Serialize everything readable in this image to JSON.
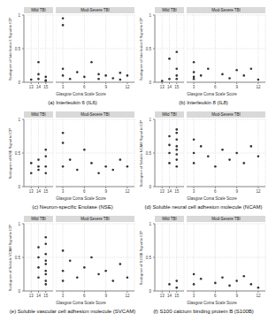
{
  "chart_data": [
    {
      "type": "scatter",
      "title": "(a) Interleukin 6 (IL6)",
      "x_label": "Glasgow Coma Scale Score",
      "y_label": "Scalogram of Interleukin 6 Signal to ICP",
      "ylim": [
        0,
        1
      ],
      "yticks": [
        0,
        0.5,
        1
      ],
      "grid": true,
      "color": "#333333",
      "panels": [
        {
          "title": "Mild TBI",
          "xlim": [
            12,
            16
          ],
          "xticks": [
            13,
            14,
            15
          ],
          "x": [
            14,
            14,
            15,
            15,
            15,
            13,
            14
          ],
          "values": [
            0.12,
            0.05,
            0.03,
            0.08,
            0.02,
            0.04,
            0.3
          ]
        },
        {
          "title": "Mod-Severe TBI",
          "xlim": [
            2,
            13
          ],
          "xticks": [
            3,
            6,
            9,
            12
          ],
          "x": [
            3,
            3,
            3,
            3,
            4,
            5,
            6,
            7,
            8,
            8,
            9,
            10,
            11,
            11,
            12
          ],
          "values": [
            0.95,
            0.85,
            0.2,
            0.1,
            0.05,
            0.15,
            0.08,
            0.3,
            0.12,
            0.05,
            0.1,
            0.06,
            0.14,
            0.04,
            0.1
          ]
        }
      ]
    },
    {
      "type": "scatter",
      "title": "(b) Interleukin 8 (IL8)",
      "x_label": "Glasgow Coma Scale Score",
      "y_label": "Scalogram of Interleukin 8 Signal to ICP",
      "ylim": [
        0,
        1
      ],
      "yticks": [
        0,
        0.5,
        1
      ],
      "grid": true,
      "color": "#333333",
      "panels": [
        {
          "title": "Mild TBI",
          "xlim": [
            12,
            16
          ],
          "xticks": [
            13,
            14,
            15
          ],
          "x": [
            13,
            14,
            14,
            15,
            15,
            15,
            15
          ],
          "values": [
            0.02,
            0.05,
            0.35,
            0.1,
            0.2,
            0.45,
            0.05
          ]
        },
        {
          "title": "Mod-Severe TBI",
          "xlim": [
            2,
            13
          ],
          "xticks": [
            3,
            6,
            9,
            12
          ],
          "x": [
            3,
            3,
            3,
            3,
            4,
            5,
            7,
            8,
            9,
            10,
            11,
            12
          ],
          "values": [
            0.15,
            0.08,
            0.3,
            0.05,
            0.1,
            0.2,
            0.12,
            0.06,
            0.18,
            0.1,
            0.2,
            0.04
          ]
        }
      ]
    },
    {
      "type": "scatter",
      "title": "(c) Neuron-specific Enolase (NSE)",
      "x_label": "Glasgow Coma Scale Score",
      "y_label": "Scalogram of NSE Signal to ICP",
      "ylim": [
        0,
        1
      ],
      "yticks": [
        0,
        0.5,
        1
      ],
      "grid": true,
      "color": "#333333",
      "panels": [
        {
          "title": "Mild TBI",
          "xlim": [
            12,
            16
          ],
          "xticks": [
            13,
            14,
            15
          ],
          "x": [
            13,
            13,
            14,
            14,
            14,
            15,
            15,
            15,
            15
          ],
          "values": [
            0.2,
            0.35,
            0.25,
            0.4,
            0.3,
            0.45,
            0.2,
            0.55,
            0.3
          ]
        },
        {
          "title": "Mod-Severe TBI",
          "xlim": [
            2,
            13
          ],
          "xticks": [
            3,
            6,
            9,
            12
          ],
          "x": [
            3,
            3,
            3,
            4,
            5,
            6,
            7,
            8,
            9,
            10,
            11,
            12
          ],
          "values": [
            0.8,
            0.65,
            0.3,
            0.4,
            0.25,
            0.55,
            0.35,
            0.2,
            0.3,
            0.25,
            0.4,
            0.3
          ]
        }
      ]
    },
    {
      "type": "scatter",
      "title": "(d) Soluble neural cell adhesion molecule (NCAM)",
      "x_label": "Glasgow Coma Scale Score",
      "y_label": "Scalogram of Soluble NCAM Signal to ICP",
      "ylim": [
        0,
        1
      ],
      "yticks": [
        0,
        0.5,
        1
      ],
      "grid": true,
      "color": "#333333",
      "panels": [
        {
          "title": "Mild TBI",
          "xlim": [
            12,
            16
          ],
          "xticks": [
            13,
            14,
            15
          ],
          "x": [
            14,
            14,
            14,
            14,
            15,
            15,
            15,
            15,
            15,
            15,
            15,
            15
          ],
          "values": [
            0.35,
            0.5,
            0.62,
            0.75,
            0.3,
            0.4,
            0.48,
            0.55,
            0.6,
            0.7,
            0.8,
            0.85
          ]
        },
        {
          "title": "Mod-Severe TBI",
          "xlim": [
            2,
            13
          ],
          "xticks": [
            3,
            6,
            9,
            12
          ],
          "x": [
            3,
            3,
            3,
            4,
            5,
            6,
            7,
            8,
            9,
            10,
            11,
            12
          ],
          "values": [
            0.7,
            0.5,
            0.35,
            0.6,
            0.45,
            0.3,
            0.55,
            0.4,
            0.5,
            0.35,
            0.6,
            0.45
          ]
        }
      ]
    },
    {
      "type": "scatter",
      "title": "(e) Soluble vascular cell adhesion molecule (SVCAM)",
      "x_label": "Glasgow Coma Scale Score",
      "y_label": "Scalogram of Soluble VCAM Signal to ICP",
      "ylim": [
        0,
        1
      ],
      "yticks": [
        0,
        0.5,
        1
      ],
      "grid": true,
      "color": "#333333",
      "panels": [
        {
          "title": "Mild TBI",
          "xlim": [
            12,
            16
          ],
          "xticks": [
            13,
            14,
            15
          ],
          "x": [
            14,
            14,
            14,
            14,
            15,
            15,
            15,
            15,
            15,
            15,
            15,
            15,
            15
          ],
          "values": [
            0.2,
            0.35,
            0.5,
            0.65,
            0.1,
            0.25,
            0.4,
            0.55,
            0.7,
            0.8,
            0.3,
            0.15,
            0.45
          ]
        },
        {
          "title": "Mod-Severe TBI",
          "xlim": [
            2,
            13
          ],
          "xticks": [
            3,
            6,
            9,
            12
          ],
          "x": [
            3,
            3,
            3,
            4,
            5,
            6,
            7,
            8,
            9,
            10,
            11,
            12
          ],
          "values": [
            0.6,
            0.3,
            0.15,
            0.45,
            0.2,
            0.35,
            0.5,
            0.25,
            0.3,
            0.15,
            0.4,
            0.2
          ]
        }
      ]
    },
    {
      "type": "scatter",
      "title": "(f) S100 calcium binding protein B (S100B)",
      "x_label": "Glasgow Coma Scale Score",
      "y_label": "Scalogram of S100B Signal to ICP",
      "ylim": [
        0,
        1
      ],
      "yticks": [
        0,
        0.5,
        1
      ],
      "grid": true,
      "color": "#333333",
      "panels": [
        {
          "title": "Mild TBI",
          "xlim": [
            12,
            16
          ],
          "xticks": [
            13,
            14,
            15
          ],
          "x": [
            14,
            15,
            15
          ],
          "values": [
            0.1,
            0.05,
            0.15
          ]
        },
        {
          "title": "Mod-Severe TBI",
          "xlim": [
            2,
            13
          ],
          "xticks": [
            3,
            6,
            9,
            12
          ],
          "x": [
            3,
            3,
            4,
            6,
            7,
            8,
            9,
            10,
            11,
            12
          ],
          "values": [
            0.25,
            0.1,
            0.18,
            0.12,
            0.2,
            0.08,
            0.15,
            0.22,
            0.1,
            0.05
          ]
        }
      ]
    }
  ]
}
